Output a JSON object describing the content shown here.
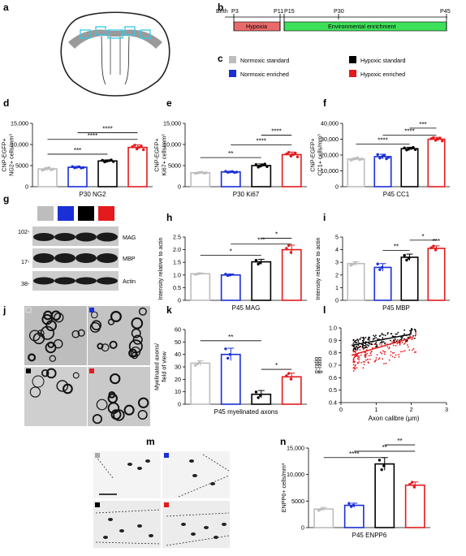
{
  "colors": {
    "normoxic_standard": "#bdbdbd",
    "normoxic_enriched": "#1a2fd6",
    "hypoxic_standard": "#000000",
    "hypoxic_enriched": "#e41a1c"
  },
  "panel_letters": [
    "a",
    "b",
    "c",
    "d",
    "e",
    "f",
    "g",
    "h",
    "i",
    "j",
    "k",
    "l",
    "m",
    "n"
  ],
  "timeline": {
    "birth": "Birth",
    "p3": "P3",
    "p11": "P11",
    "p15": "P15",
    "p30": "P30",
    "p45": "P45",
    "hypoxia": "Hypoxia",
    "enrichment": "Environmental enrichment",
    "colors": {
      "hypoxia": "#e86a6a",
      "enrichment": "#3ee05a"
    }
  },
  "legend": [
    {
      "label": "Normoxic standard",
      "color": "#bdbdbd"
    },
    {
      "label": "Hypoxic standard",
      "color": "#000000"
    },
    {
      "label": "Normoxic enriched",
      "color": "#1a2fd6"
    },
    {
      "label": "Hypoxic enriched",
      "color": "#e41a1c"
    }
  ],
  "western": {
    "mw": [
      "102-",
      "17-",
      "38-"
    ],
    "bands": [
      "MAG",
      "MBP",
      "Actin"
    ]
  },
  "em_scale": "",
  "chart_data": [
    {
      "id": "d",
      "type": "bar",
      "categories": [
        "Normoxic standard",
        "Normoxic enriched",
        "Hypoxic standard",
        "Hypoxic enriched"
      ],
      "values": [
        4200,
        4600,
        6100,
        9300
      ],
      "errors": [
        350,
        200,
        250,
        600
      ],
      "ylabel_lines": [
        "CNP-EGFP+",
        "NG2+ cells/mm³"
      ],
      "ylim": [
        0,
        15000
      ],
      "yticks": [
        "0",
        "5000",
        "10,000",
        "15,000"
      ],
      "ytick_values": [
        0,
        5000,
        10000,
        15000
      ],
      "xlabel": "P30 NG2",
      "sig": [
        {
          "a": 0,
          "b": 2,
          "t": "***",
          "y": 7700
        },
        {
          "a": 0,
          "b": 3,
          "t": "****",
          "y": 11200
        },
        {
          "a": 1,
          "b": 3,
          "t": "****",
          "y": 12800
        }
      ]
    },
    {
      "id": "e",
      "type": "bar",
      "categories": [
        "Normoxic standard",
        "Normoxic enriched",
        "Hypoxic standard",
        "Hypoxic enriched"
      ],
      "values": [
        3300,
        3500,
        5000,
        7600
      ],
      "errors": [
        150,
        150,
        400,
        600
      ],
      "ylabel_lines": [
        "CNP-EGFP+",
        "Ki67+ cells/mm³"
      ],
      "ylim": [
        0,
        15000
      ],
      "yticks": [
        "0",
        "5000",
        "10,000",
        "15,000"
      ],
      "ytick_values": [
        0,
        5000,
        10000,
        15000
      ],
      "xlabel": "P30 Ki67",
      "sig": [
        {
          "a": 0,
          "b": 2,
          "t": "**",
          "y": 6900
        },
        {
          "a": 1,
          "b": 3,
          "t": "****",
          "y": 9900
        },
        {
          "a": 2,
          "b": 3,
          "t": "****",
          "y": 12200
        }
      ]
    },
    {
      "id": "f",
      "type": "bar",
      "categories": [
        "Normoxic standard",
        "Normoxic enriched",
        "Hypoxic standard",
        "Hypoxic enriched"
      ],
      "values": [
        17500,
        19000,
        24000,
        30000
      ],
      "errors": [
        800,
        1500,
        900,
        1200
      ],
      "ylabel_lines": [
        "CNP-EGFP+",
        "CC1+ cells/mm³"
      ],
      "ylim": [
        0,
        40000
      ],
      "yticks": [
        "0",
        "10,000",
        "20,000",
        "30,000",
        "40,000"
      ],
      "ytick_values": [
        0,
        10000,
        20000,
        30000,
        40000
      ],
      "xlabel": "P45 CC1",
      "sig": [
        {
          "a": 0,
          "b": 2,
          "t": "****",
          "y": 27000
        },
        {
          "a": 1,
          "b": 3,
          "t": "****",
          "y": 32500
        },
        {
          "a": 2,
          "b": 3,
          "t": "***",
          "y": 37000
        }
      ]
    },
    {
      "id": "h",
      "type": "bar",
      "categories": [
        "Normoxic standard",
        "Normoxic enriched",
        "Hypoxic standard",
        "Hypoxic enriched"
      ],
      "values": [
        1.05,
        1.0,
        1.52,
        2.0
      ],
      "errors": [
        0.03,
        0.04,
        0.1,
        0.18
      ],
      "ylabel_lines": [
        "Intensity relative to actin"
      ],
      "ylim": [
        0,
        2.5
      ],
      "yticks": [
        "0",
        "0.5",
        "1.0",
        "1.5",
        "2.0",
        "2.5"
      ],
      "ytick_values": [
        0,
        0.5,
        1.0,
        1.5,
        2.0,
        2.5
      ],
      "xlabel": "P45 MAG",
      "sig": [
        {
          "a": 0,
          "b": 2,
          "t": "*",
          "y": 1.78
        },
        {
          "a": 1,
          "b": 3,
          "t": "***",
          "y": 2.22
        },
        {
          "a": 2,
          "b": 3,
          "t": "*",
          "y": 2.45
        }
      ]
    },
    {
      "id": "i",
      "type": "bar",
      "categories": [
        "Normoxic standard",
        "Normoxic enriched",
        "Hypoxic standard",
        "Hypoxic enriched"
      ],
      "values": [
        2.9,
        2.6,
        3.4,
        4.1
      ],
      "errors": [
        0.15,
        0.3,
        0.25,
        0.2
      ],
      "ylabel_lines": [
        "Intensity relative to actin"
      ],
      "ylim": [
        0,
        5
      ],
      "yticks": [
        "0",
        "1",
        "2",
        "3",
        "4",
        "5"
      ],
      "ytick_values": [
        0,
        1,
        2,
        3,
        4,
        5
      ],
      "xlabel": "P45 MBP",
      "sig": [
        {
          "a": 1,
          "b": 2,
          "t": "**",
          "y": 3.95
        },
        {
          "a": 2,
          "b": 3,
          "t": "*",
          "y": 4.75
        }
      ],
      "over": {
        "i": 3,
        "t": "***"
      }
    },
    {
      "id": "k",
      "type": "bar",
      "categories": [
        "Normoxic standard",
        "Normoxic enriched",
        "Hypoxic standard",
        "Hypoxic enriched"
      ],
      "values": [
        33,
        40,
        8,
        22
      ],
      "errors": [
        2,
        5,
        3,
        3
      ],
      "ylabel_lines": [
        "Myelinated axons/",
        "field of view"
      ],
      "ylim": [
        0,
        60
      ],
      "yticks": [
        "0",
        "10",
        "20",
        "30",
        "40",
        "50",
        "60"
      ],
      "ytick_values": [
        0,
        10,
        20,
        30,
        40,
        50,
        60
      ],
      "xlabel": "P45 myelinated axons",
      "sig": [
        {
          "a": 0,
          "b": 2,
          "t": "**",
          "y": 51
        },
        {
          "a": 2,
          "b": 3,
          "t": "*",
          "y": 28
        }
      ]
    },
    {
      "id": "l",
      "type": "scatter",
      "xlabel": "Axon calibre (μm)",
      "ylabel": "g-ratio",
      "xlim": [
        0,
        3
      ],
      "ylim": [
        0.4,
        1.0
      ],
      "xticks": [
        "0",
        "1",
        "2",
        "3"
      ],
      "yticks": [
        "0.4",
        "0.5",
        "0.6",
        "0.7",
        "0.8",
        "0.9",
        "1.0"
      ],
      "series": [
        {
          "color": "#000000",
          "fit": [
            [
              0.3,
              0.86
            ],
            [
              2.0,
              0.95
            ]
          ]
        },
        {
          "color": "#e41a1c",
          "fit": [
            [
              0.3,
              0.78
            ],
            [
              2.0,
              0.92
            ]
          ]
        }
      ]
    },
    {
      "id": "n",
      "type": "bar",
      "categories": [
        "Normoxic standard",
        "Normoxic enriched",
        "Hypoxic standard",
        "Hypoxic enriched"
      ],
      "values": [
        3500,
        4200,
        12000,
        8000
      ],
      "errors": [
        300,
        400,
        1200,
        600
      ],
      "ylabel_lines": [
        "ENPP6+ cells/mm³"
      ],
      "ylim": [
        0,
        15000
      ],
      "yticks": [
        "0",
        "5000",
        "10,000",
        "15,000"
      ],
      "ytick_values": [
        0,
        5000,
        10000,
        15000
      ],
      "xlabel": "P45 ENPP6",
      "sig": [
        {
          "a": 0,
          "b": 2,
          "t": "****",
          "y": 13200
        },
        {
          "a": 1,
          "b": 3,
          "t": "**",
          "y": 14400
        },
        {
          "a": 2,
          "b": 3,
          "t": "**",
          "y": 15600
        }
      ]
    }
  ]
}
